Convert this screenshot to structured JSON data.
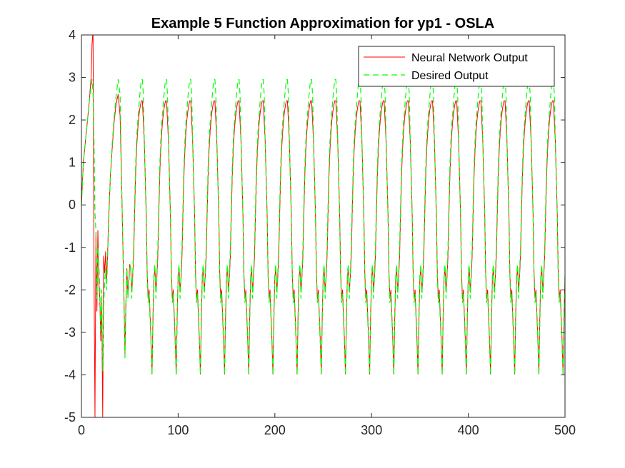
{
  "chart_data": {
    "type": "line",
    "title": "Example 5 Function Approximation for yp1 - OSLA",
    "xlabel": "",
    "ylabel": "",
    "xlim": [
      0,
      500
    ],
    "ylim": [
      -5,
      4
    ],
    "x_ticks": [
      "0",
      "100",
      "200",
      "300",
      "400",
      "500"
    ],
    "y_ticks": [
      "4",
      "3",
      "2",
      "1",
      "0",
      "-1",
      "-2",
      "-3",
      "-4",
      "-5"
    ],
    "grid": false,
    "legend_position": "top-right",
    "period": 25,
    "series": [
      {
        "name": "Neural Network Output",
        "color": "#ff0000",
        "line_style": "solid",
        "cycle_shape": [
          [
            0,
            2.45
          ],
          [
            2,
            1.5
          ],
          [
            4,
            -0.2
          ],
          [
            5,
            -1.6
          ],
          [
            6,
            -2.2
          ],
          [
            7,
            -2.0
          ],
          [
            8,
            -2.6
          ],
          [
            9,
            -3.2
          ],
          [
            10,
            -3.98
          ],
          [
            11,
            -2.6
          ],
          [
            12,
            -1.7
          ],
          [
            13,
            -1.5
          ],
          [
            14,
            -2.05
          ],
          [
            15,
            -1.7
          ],
          [
            16,
            -1.2
          ],
          [
            17,
            -0.2
          ],
          [
            18,
            0.7
          ],
          [
            19,
            1.3
          ],
          [
            20,
            1.7
          ],
          [
            21,
            2.0
          ],
          [
            22,
            2.2
          ],
          [
            23,
            2.35
          ],
          [
            24,
            2.45
          ],
          [
            25,
            2.45
          ]
        ],
        "startup": [
          [
            0,
            0.0
          ],
          [
            2,
            1.0
          ],
          [
            5,
            1.7
          ],
          [
            8,
            2.4
          ],
          [
            10,
            3.0
          ],
          [
            11,
            3.8
          ],
          [
            12,
            4.1
          ],
          [
            13,
            -1.5
          ],
          [
            14,
            -5.0
          ],
          [
            15,
            -0.7
          ],
          [
            16,
            -2.5
          ],
          [
            17,
            -0.6
          ],
          [
            18,
            -1.8
          ],
          [
            19,
            -2.2
          ],
          [
            20,
            -3.2
          ],
          [
            21,
            -2.3
          ],
          [
            22,
            -5.0
          ],
          [
            23,
            -1.2
          ],
          [
            24,
            -1.6
          ],
          [
            25,
            -1.1
          ],
          [
            26,
            -1.8
          ],
          [
            27,
            -1.2
          ],
          [
            28,
            -0.4
          ],
          [
            30,
            0.7
          ],
          [
            32,
            1.4
          ],
          [
            34,
            2.0
          ],
          [
            36,
            2.4
          ],
          [
            38,
            2.6
          ],
          [
            40,
            2.1
          ],
          [
            42,
            0.0
          ],
          [
            44,
            -2.2
          ],
          [
            45,
            -3.5
          ],
          [
            46,
            -2.3
          ],
          [
            47,
            -1.5
          ],
          [
            48,
            -2.1
          ],
          [
            50,
            -1.4
          ]
        ]
      },
      {
        "name": "Desired Output",
        "color": "#00ff00",
        "line_style": "dashed",
        "cycle_shape": [
          [
            0,
            2.95
          ],
          [
            1,
            2.6
          ],
          [
            2,
            1.5
          ],
          [
            4,
            -0.3
          ],
          [
            5,
            -1.7
          ],
          [
            6,
            -2.3
          ],
          [
            7,
            -2.1
          ],
          [
            8,
            -2.7
          ],
          [
            9,
            -3.3
          ],
          [
            10,
            -4.0
          ],
          [
            11,
            -2.8
          ],
          [
            12,
            -1.6
          ],
          [
            13,
            -1.4
          ],
          [
            14,
            -2.2
          ],
          [
            15,
            -1.6
          ],
          [
            16,
            -1.0
          ],
          [
            17,
            0.0
          ],
          [
            18,
            0.9
          ],
          [
            19,
            1.5
          ],
          [
            20,
            1.9
          ],
          [
            21,
            2.2
          ],
          [
            22,
            2.5
          ],
          [
            23,
            2.75
          ],
          [
            24,
            2.95
          ],
          [
            25,
            2.95
          ]
        ],
        "startup": [
          [
            0,
            0.0
          ],
          [
            2,
            1.0
          ],
          [
            5,
            1.7
          ],
          [
            8,
            2.4
          ],
          [
            10,
            2.8
          ],
          [
            11,
            2.95
          ],
          [
            12,
            2.6
          ],
          [
            13,
            1.5
          ],
          [
            14,
            -0.2
          ],
          [
            15,
            -0.6
          ],
          [
            16,
            -2.2
          ],
          [
            17,
            -1.0
          ],
          [
            18,
            -1.4
          ],
          [
            19,
            -2.0
          ],
          [
            20,
            -3.0
          ],
          [
            21,
            -2.0
          ],
          [
            22,
            -3.9
          ],
          [
            23,
            -2.4
          ],
          [
            24,
            -1.8
          ],
          [
            25,
            -1.5
          ],
          [
            26,
            -2.0
          ],
          [
            27,
            -1.3
          ],
          [
            28,
            -0.5
          ],
          [
            30,
            0.7
          ],
          [
            32,
            1.5
          ],
          [
            34,
            2.1
          ],
          [
            36,
            2.6
          ],
          [
            38,
            2.95
          ],
          [
            40,
            2.6
          ],
          [
            42,
            0.0
          ],
          [
            44,
            -2.3
          ],
          [
            45,
            -3.6
          ],
          [
            46,
            -2.4
          ],
          [
            47,
            -1.5
          ],
          [
            48,
            -2.2
          ],
          [
            50,
            -1.5
          ]
        ]
      }
    ]
  }
}
